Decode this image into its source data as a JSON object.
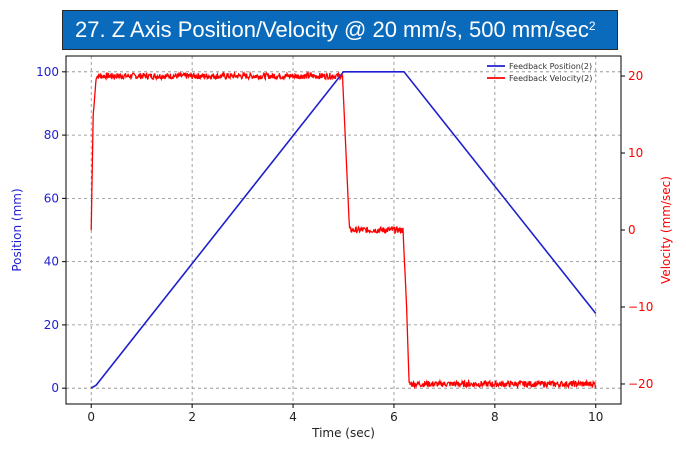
{
  "chart_data": {
    "type": "line",
    "title_text": "27.   Z Axis Position/Velocity @ 20 mm/s, 500 mm/sec",
    "title_sup": "2",
    "xlabel": "Time (sec)",
    "ylabel_left": "Position (mm)",
    "ylabel_right": "Velocity (mm/sec)",
    "xlim": [
      -0.5,
      10.5
    ],
    "ylim_left": [
      -5,
      105
    ],
    "ylim_right": [
      -22.6,
      22.6
    ],
    "x_ticks": [
      "0",
      "2",
      "4",
      "6",
      "8",
      "10"
    ],
    "y_left_ticks": [
      "0",
      "20",
      "40",
      "60",
      "80",
      "100"
    ],
    "y_right_ticks": [
      "−20",
      "−10",
      "0",
      "10",
      "20"
    ],
    "grid": true,
    "legend_position": "top-right",
    "colors": {
      "position": "#1f1fd0",
      "velocity": "#ff0000",
      "banner": "#0a6bbd"
    },
    "series": [
      {
        "name": "Feedback Position(2)",
        "axis": "left",
        "x": [
          0,
          0.1,
          5.0,
          6.2,
          10.0
        ],
        "y": [
          0,
          1,
          100,
          100,
          23.6
        ]
      },
      {
        "name": "Feedback Velocity(2)",
        "axis": "right",
        "x": [
          0,
          0.04,
          0.1,
          4.98,
          5.05,
          5.12,
          6.18,
          6.25,
          6.3,
          10.0
        ],
        "y": [
          0,
          15,
          20,
          20,
          10,
          0,
          0,
          -10,
          -20,
          -20
        ]
      }
    ]
  }
}
